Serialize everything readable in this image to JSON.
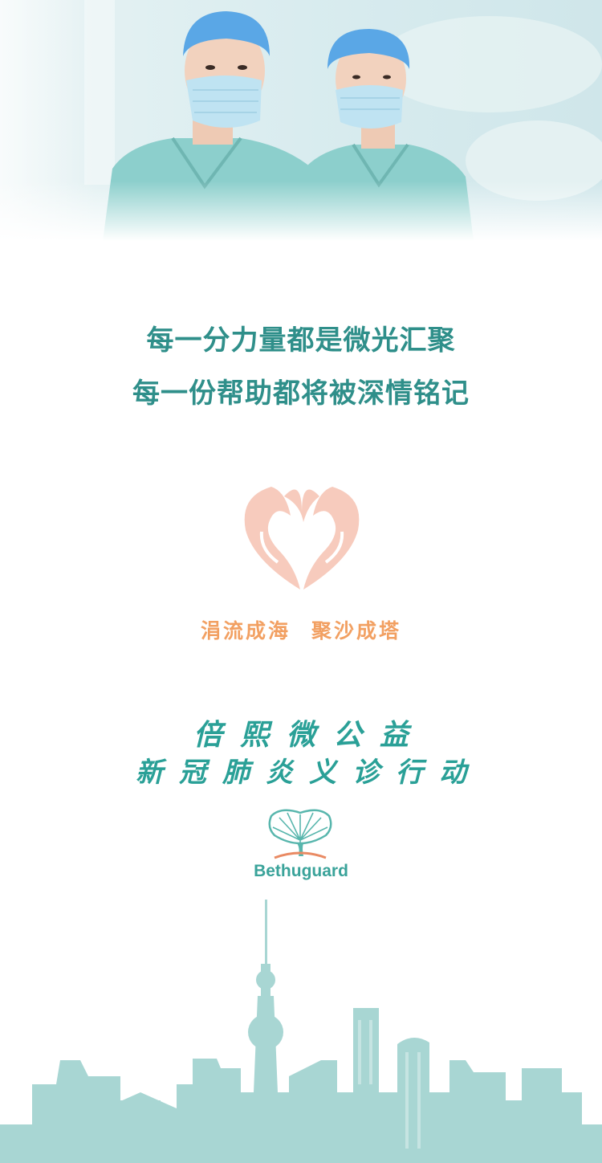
{
  "hero": {
    "image_label": "medical-staff-in-masks",
    "colors": {
      "scrubs": "#8ccfcc",
      "cap": "#5aa7e6",
      "mask": "#bfe3f2",
      "skin": "#f2d2be"
    }
  },
  "slogan": {
    "line1": "每一分力量都是微光汇聚",
    "line2": "每一份帮助都将被深情铭记",
    "color": "#2f8f8a"
  },
  "heart_logo": {
    "icon": "heart-hands-icon",
    "color": "#f7cbbd"
  },
  "tagline": {
    "part1": "涓流成海",
    "part2": "聚沙成塔",
    "color": "#f2a062"
  },
  "campaign": {
    "line1": "倍熙微公益",
    "line2": "新冠肺炎义诊行动",
    "color": "#2aa097"
  },
  "brand": {
    "icon": "ginkgo-tree-icon",
    "name": "Bethuguard",
    "colors": {
      "leaf": "#58b6ad",
      "ground": "#e98a63"
    }
  },
  "skyline": {
    "icon": "city-skyline-illustration",
    "color": "#a8d6d3"
  }
}
